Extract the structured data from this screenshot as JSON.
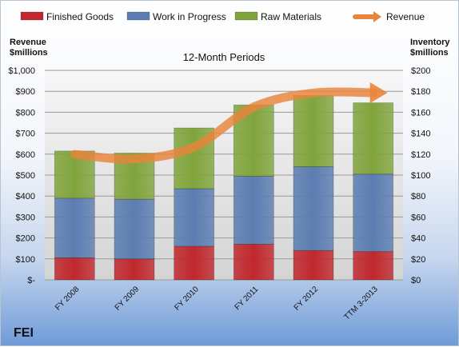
{
  "company": "FEI",
  "chart_data": {
    "type": "bar",
    "stacked": true,
    "title": "12-Month Periods",
    "categories": [
      "FY 2008",
      "FY 2009",
      "FY 2010",
      "FY 2011",
      "FY 2012",
      "TTM 3-2013"
    ],
    "left_axis": {
      "label_line1": "Revenue",
      "label_line2": "$millions",
      "range": [
        0,
        1000
      ],
      "ticks": [
        0,
        100,
        200,
        300,
        400,
        500,
        600,
        700,
        800,
        900,
        1000
      ],
      "tick_labels": [
        "$-",
        "$100",
        "$200",
        "$300",
        "$400",
        "$500",
        "$600",
        "$700",
        "$800",
        "$900",
        "$1,000"
      ]
    },
    "right_axis": {
      "label_line1": "Inventory",
      "label_line2": "$millions",
      "range": [
        0,
        200
      ],
      "ticks": [
        0,
        20,
        40,
        60,
        80,
        100,
        120,
        140,
        160,
        180,
        200
      ],
      "tick_labels": [
        "$0",
        "$20",
        "$40",
        "$60",
        "$80",
        "$100",
        "$120",
        "$140",
        "$160",
        "$180",
        "$200"
      ]
    },
    "series": [
      {
        "name": "Finished Goods",
        "axis": "right",
        "color": "#c0282d",
        "values": [
          21,
          20,
          32,
          34,
          28,
          27
        ]
      },
      {
        "name": "Work in Progress",
        "axis": "right",
        "color": "#5b7db1",
        "values": [
          57,
          57,
          55,
          65,
          80,
          74
        ]
      },
      {
        "name": "Raw Materials",
        "axis": "right",
        "color": "#80a43c",
        "values": [
          45,
          44,
          58,
          68,
          68,
          68
        ]
      },
      {
        "name": "Revenue",
        "axis": "left",
        "type": "line",
        "color": "#e9843a",
        "values": [
          599,
          577,
          634,
          825,
          892,
          893
        ]
      }
    ],
    "grid": true,
    "legend": "top"
  }
}
